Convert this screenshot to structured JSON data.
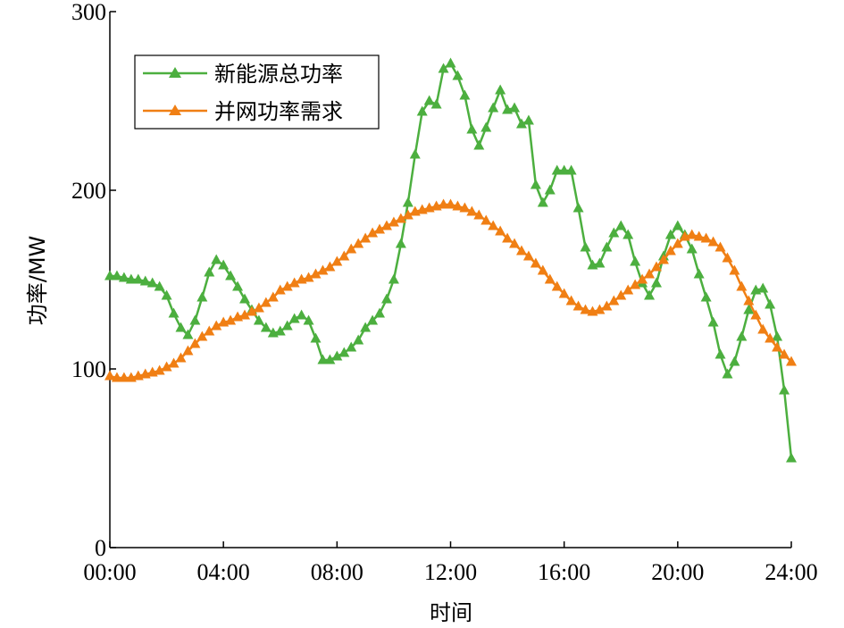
{
  "chart_data": {
    "type": "line",
    "xlabel": "时间",
    "ylabel": "功率/MW",
    "xlim": [
      0,
      24
    ],
    "ylim": [
      0,
      300
    ],
    "x_ticks": [
      {
        "value": 0,
        "label": "00:00"
      },
      {
        "value": 4,
        "label": "04:00"
      },
      {
        "value": 8,
        "label": "08:00"
      },
      {
        "value": 12,
        "label": "12:00"
      },
      {
        "value": 16,
        "label": "16:00"
      },
      {
        "value": 20,
        "label": "20:00"
      },
      {
        "value": 24,
        "label": "24:00"
      }
    ],
    "y_ticks": [
      {
        "value": 0,
        "label": "0"
      },
      {
        "value": 100,
        "label": "100"
      },
      {
        "value": 200,
        "label": "200"
      },
      {
        "value": 300,
        "label": "300"
      }
    ],
    "grid": false,
    "legend_position": "top-left",
    "marker": "triangle",
    "series": [
      {
        "name": "新能源总功率",
        "color": "#4caf3f",
        "points": [
          [
            0.0,
            152
          ],
          [
            0.25,
            152
          ],
          [
            0.5,
            151
          ],
          [
            0.75,
            150
          ],
          [
            1.0,
            150
          ],
          [
            1.25,
            149
          ],
          [
            1.5,
            148
          ],
          [
            1.75,
            146
          ],
          [
            2.0,
            141
          ],
          [
            2.25,
            131
          ],
          [
            2.5,
            123
          ],
          [
            2.75,
            119
          ],
          [
            3.0,
            127
          ],
          [
            3.25,
            140
          ],
          [
            3.5,
            154
          ],
          [
            3.75,
            161
          ],
          [
            4.0,
            158
          ],
          [
            4.25,
            152
          ],
          [
            4.5,
            146
          ],
          [
            4.75,
            139
          ],
          [
            5.0,
            133
          ],
          [
            5.25,
            127
          ],
          [
            5.5,
            123
          ],
          [
            5.75,
            120
          ],
          [
            6.0,
            121
          ],
          [
            6.25,
            124
          ],
          [
            6.5,
            128
          ],
          [
            6.75,
            130
          ],
          [
            7.0,
            127
          ],
          [
            7.25,
            117
          ],
          [
            7.5,
            105
          ],
          [
            7.75,
            105
          ],
          [
            8.0,
            107
          ],
          [
            8.25,
            109
          ],
          [
            8.5,
            112
          ],
          [
            8.75,
            116
          ],
          [
            9.0,
            123
          ],
          [
            9.25,
            127
          ],
          [
            9.5,
            131
          ],
          [
            9.75,
            139
          ],
          [
            10.0,
            150
          ],
          [
            10.25,
            170
          ],
          [
            10.5,
            193
          ],
          [
            10.75,
            220
          ],
          [
            11.0,
            244
          ],
          [
            11.25,
            250
          ],
          [
            11.5,
            248
          ],
          [
            11.75,
            268
          ],
          [
            12.0,
            271
          ],
          [
            12.25,
            264
          ],
          [
            12.5,
            253
          ],
          [
            12.75,
            234
          ],
          [
            13.0,
            225
          ],
          [
            13.25,
            235
          ],
          [
            13.5,
            246
          ],
          [
            13.75,
            256
          ],
          [
            14.0,
            245
          ],
          [
            14.25,
            246
          ],
          [
            14.5,
            237
          ],
          [
            14.75,
            239
          ],
          [
            15.0,
            203
          ],
          [
            15.25,
            193
          ],
          [
            15.5,
            200
          ],
          [
            15.75,
            211
          ],
          [
            16.0,
            211
          ],
          [
            16.25,
            211
          ],
          [
            16.5,
            190
          ],
          [
            16.75,
            168
          ],
          [
            17.0,
            158
          ],
          [
            17.25,
            159
          ],
          [
            17.5,
            168
          ],
          [
            17.75,
            176
          ],
          [
            18.0,
            180
          ],
          [
            18.25,
            175
          ],
          [
            18.5,
            160
          ],
          [
            18.75,
            148
          ],
          [
            19.0,
            141
          ],
          [
            19.25,
            148
          ],
          [
            19.5,
            163
          ],
          [
            19.75,
            175
          ],
          [
            20.0,
            180
          ],
          [
            20.25,
            175
          ],
          [
            20.5,
            167
          ],
          [
            20.75,
            153
          ],
          [
            21.0,
            140
          ],
          [
            21.25,
            126
          ],
          [
            21.5,
            108
          ],
          [
            21.75,
            97
          ],
          [
            22.0,
            104
          ],
          [
            22.25,
            118
          ],
          [
            22.5,
            133
          ],
          [
            22.75,
            144
          ],
          [
            23.0,
            145
          ],
          [
            23.25,
            136
          ],
          [
            23.5,
            118
          ],
          [
            23.75,
            88
          ],
          [
            24.0,
            50
          ]
        ]
      },
      {
        "name": "并网功率需求",
        "color": "#f07f14",
        "points": [
          [
            0.0,
            96
          ],
          [
            0.25,
            95
          ],
          [
            0.5,
            95
          ],
          [
            0.75,
            95
          ],
          [
            1.0,
            96
          ],
          [
            1.25,
            97
          ],
          [
            1.5,
            98
          ],
          [
            1.75,
            99
          ],
          [
            2.0,
            101
          ],
          [
            2.25,
            103
          ],
          [
            2.5,
            106
          ],
          [
            2.75,
            110
          ],
          [
            3.0,
            114
          ],
          [
            3.25,
            118
          ],
          [
            3.5,
            121
          ],
          [
            3.75,
            124
          ],
          [
            4.0,
            126
          ],
          [
            4.25,
            127
          ],
          [
            4.5,
            129
          ],
          [
            4.75,
            130
          ],
          [
            5.0,
            132
          ],
          [
            5.25,
            134
          ],
          [
            5.5,
            137
          ],
          [
            5.75,
            140
          ],
          [
            6.0,
            144
          ],
          [
            6.25,
            146
          ],
          [
            6.5,
            148
          ],
          [
            6.75,
            150
          ],
          [
            7.0,
            151
          ],
          [
            7.25,
            153
          ],
          [
            7.5,
            155
          ],
          [
            7.75,
            157
          ],
          [
            8.0,
            160
          ],
          [
            8.25,
            163
          ],
          [
            8.5,
            167
          ],
          [
            8.75,
            170
          ],
          [
            9.0,
            173
          ],
          [
            9.25,
            176
          ],
          [
            9.5,
            178
          ],
          [
            9.75,
            180
          ],
          [
            10.0,
            182
          ],
          [
            10.25,
            184
          ],
          [
            10.5,
            186
          ],
          [
            10.75,
            188
          ],
          [
            11.0,
            189
          ],
          [
            11.25,
            190
          ],
          [
            11.5,
            191
          ],
          [
            11.75,
            192
          ],
          [
            12.0,
            192
          ],
          [
            12.25,
            191
          ],
          [
            12.5,
            190
          ],
          [
            12.75,
            188
          ],
          [
            13.0,
            186
          ],
          [
            13.25,
            183
          ],
          [
            13.5,
            180
          ],
          [
            13.75,
            177
          ],
          [
            14.0,
            173
          ],
          [
            14.25,
            170
          ],
          [
            14.5,
            166
          ],
          [
            14.75,
            163
          ],
          [
            15.0,
            159
          ],
          [
            15.25,
            155
          ],
          [
            15.5,
            150
          ],
          [
            15.75,
            146
          ],
          [
            16.0,
            142
          ],
          [
            16.25,
            138
          ],
          [
            16.5,
            135
          ],
          [
            16.75,
            133
          ],
          [
            17.0,
            132
          ],
          [
            17.25,
            133
          ],
          [
            17.5,
            135
          ],
          [
            17.75,
            138
          ],
          [
            18.0,
            141
          ],
          [
            18.25,
            144
          ],
          [
            18.5,
            147
          ],
          [
            18.75,
            150
          ],
          [
            19.0,
            153
          ],
          [
            19.25,
            157
          ],
          [
            19.5,
            161
          ],
          [
            19.75,
            166
          ],
          [
            20.0,
            170
          ],
          [
            20.25,
            174
          ],
          [
            20.5,
            175
          ],
          [
            20.75,
            174
          ],
          [
            21.0,
            173
          ],
          [
            21.25,
            171
          ],
          [
            21.5,
            168
          ],
          [
            21.75,
            162
          ],
          [
            22.0,
            155
          ],
          [
            22.25,
            146
          ],
          [
            22.5,
            138
          ],
          [
            22.75,
            130
          ],
          [
            23.0,
            122
          ],
          [
            23.25,
            117
          ],
          [
            23.5,
            112
          ],
          [
            23.75,
            108
          ],
          [
            24.0,
            104
          ]
        ]
      }
    ]
  }
}
